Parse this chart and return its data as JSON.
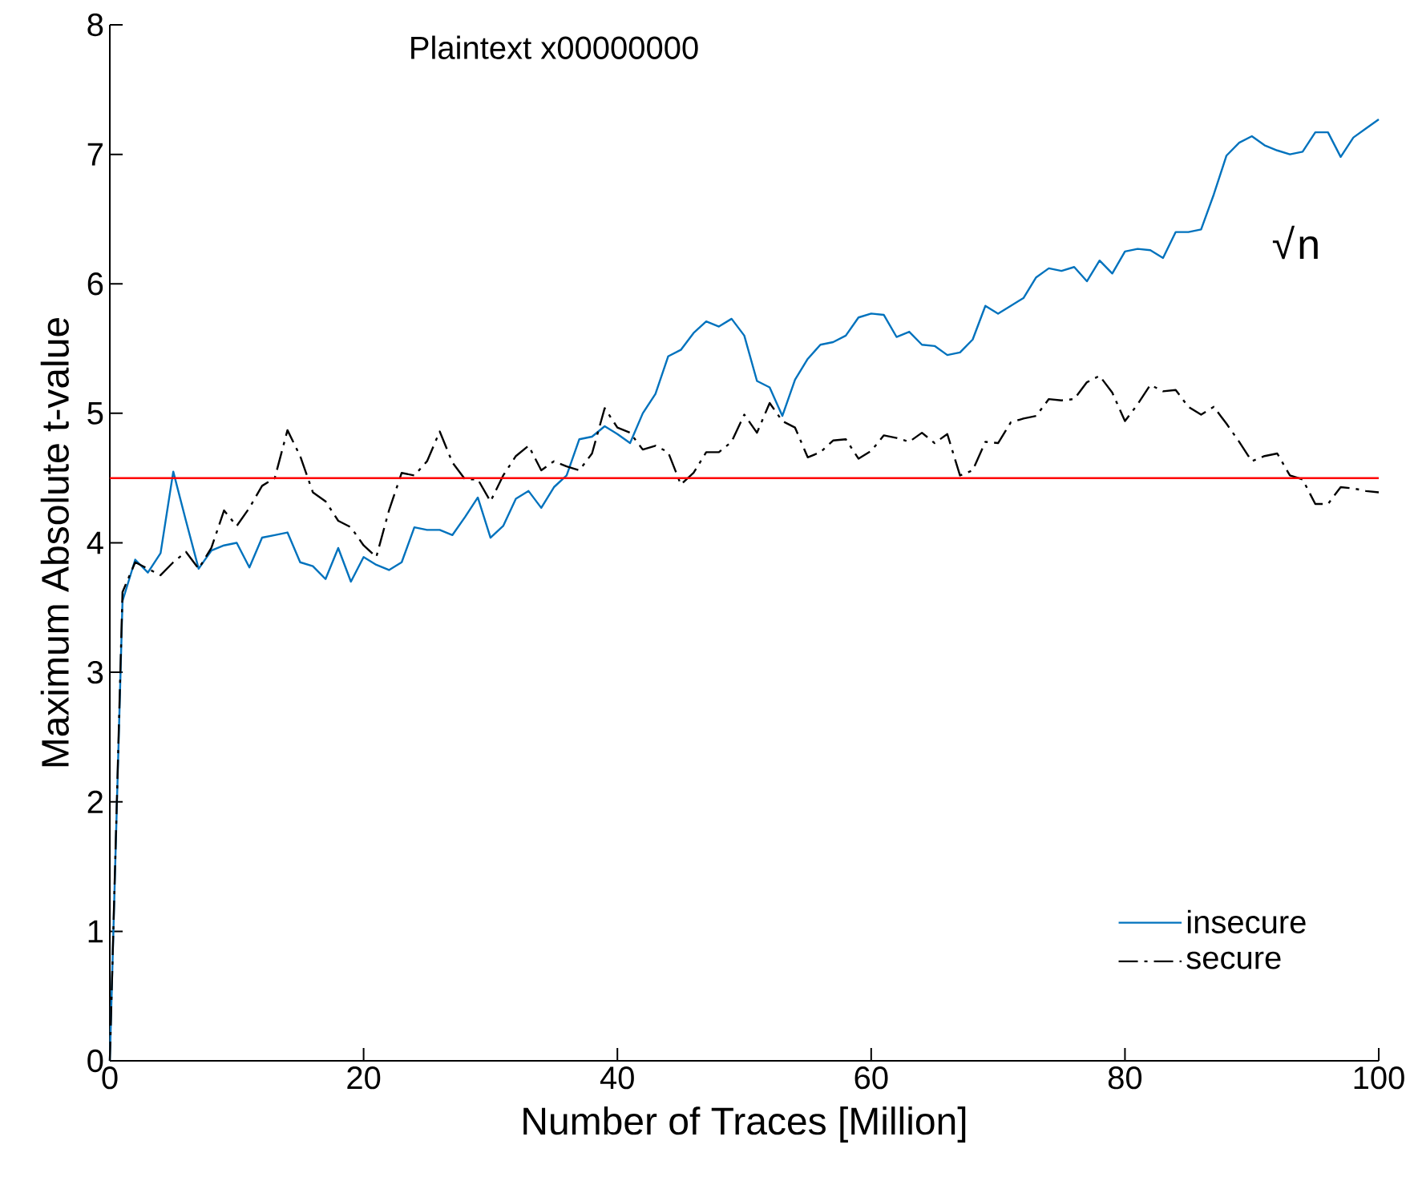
{
  "chart_data": {
    "type": "line",
    "title": "Plaintext x00000000",
    "xlabel": "Number of Traces [Million]",
    "ylabel": "Maximum Absolute t-value",
    "x": [
      0,
      1,
      2,
      3,
      4,
      5,
      6,
      7,
      8,
      9,
      10,
      11,
      12,
      13,
      14,
      15,
      16,
      17,
      18,
      19,
      20,
      21,
      22,
      23,
      24,
      25,
      26,
      27,
      28,
      29,
      30,
      31,
      32,
      33,
      34,
      35,
      36,
      37,
      38,
      39,
      40,
      41,
      42,
      43,
      44,
      45,
      46,
      47,
      48,
      49,
      50,
      51,
      52,
      53,
      54,
      55,
      56,
      57,
      58,
      59,
      60,
      61,
      62,
      63,
      64,
      65,
      66,
      67,
      68,
      69,
      70,
      71,
      72,
      73,
      74,
      75,
      76,
      77,
      78,
      79,
      80,
      81,
      82,
      83,
      84,
      85,
      86,
      87,
      88,
      89,
      90,
      91,
      92,
      93,
      94,
      95,
      96,
      97,
      98,
      99,
      100
    ],
    "series": [
      {
        "name": "insecure",
        "color": "#0072bd",
        "line_style": "solid",
        "values": [
          0,
          3.55,
          3.87,
          3.77,
          3.92,
          4.55,
          4.17,
          3.8,
          3.94,
          3.98,
          4.0,
          3.81,
          4.04,
          4.06,
          4.08,
          3.85,
          3.82,
          3.72,
          3.96,
          3.7,
          3.89,
          3.83,
          3.79,
          3.85,
          4.12,
          4.1,
          4.1,
          4.06,
          4.2,
          4.35,
          4.04,
          4.13,
          4.34,
          4.4,
          4.27,
          4.43,
          4.52,
          4.8,
          4.82,
          4.9,
          4.84,
          4.77,
          5.0,
          5.15,
          5.44,
          5.49,
          5.62,
          5.71,
          5.67,
          5.73,
          5.6,
          5.25,
          5.2,
          4.98,
          5.26,
          5.42,
          5.53,
          5.55,
          5.6,
          5.74,
          5.77,
          5.76,
          5.59,
          5.63,
          5.53,
          5.52,
          5.45,
          5.47,
          5.57,
          5.83,
          5.77,
          5.83,
          5.89,
          6.05,
          6.12,
          6.1,
          6.13,
          6.02,
          6.18,
          6.08,
          6.25,
          6.27,
          6.26,
          6.2,
          6.4,
          6.4,
          6.42,
          6.69,
          6.99,
          7.09,
          7.14,
          7.07,
          7.03,
          7.0,
          7.02,
          7.17,
          7.17,
          6.98,
          7.13,
          7.2,
          7.27
        ]
      },
      {
        "name": "secure",
        "color": "#000000",
        "line_style": "dashdot",
        "values": [
          0,
          3.62,
          3.85,
          3.8,
          3.75,
          3.85,
          3.93,
          3.8,
          3.96,
          4.25,
          4.13,
          4.27,
          4.44,
          4.5,
          4.87,
          4.67,
          4.39,
          4.32,
          4.17,
          4.12,
          3.98,
          3.89,
          4.25,
          4.54,
          4.52,
          4.63,
          4.86,
          4.62,
          4.49,
          4.49,
          4.32,
          4.52,
          4.67,
          4.75,
          4.56,
          4.63,
          4.59,
          4.56,
          4.69,
          5.04,
          4.89,
          4.85,
          4.72,
          4.75,
          4.7,
          4.45,
          4.54,
          4.7,
          4.7,
          4.78,
          4.99,
          4.85,
          5.08,
          4.94,
          4.89,
          4.66,
          4.7,
          4.79,
          4.8,
          4.65,
          4.71,
          4.83,
          4.81,
          4.78,
          4.85,
          4.77,
          4.84,
          4.52,
          4.56,
          4.78,
          4.77,
          4.93,
          4.96,
          4.98,
          5.11,
          5.1,
          5.11,
          5.24,
          5.29,
          5.16,
          4.94,
          5.07,
          5.22,
          5.17,
          5.18,
          5.05,
          4.99,
          5.05,
          4.92,
          4.78,
          4.63,
          4.67,
          4.69,
          4.52,
          4.49,
          4.3,
          4.3,
          4.43,
          4.42,
          4.4,
          4.39
        ]
      }
    ],
    "ref_lines": [
      {
        "axis": "y",
        "value": 4.5,
        "color": "#ff0000"
      }
    ],
    "annotations": [
      "√n"
    ],
    "xlim": [
      0,
      100
    ],
    "ylim": [
      0,
      8
    ],
    "xticks": [
      0,
      20,
      40,
      60,
      80,
      100
    ],
    "yticks": [
      0,
      1,
      2,
      3,
      4,
      5,
      6,
      7,
      8
    ],
    "grid": false,
    "legend": "bottom right",
    "marker": "none"
  }
}
